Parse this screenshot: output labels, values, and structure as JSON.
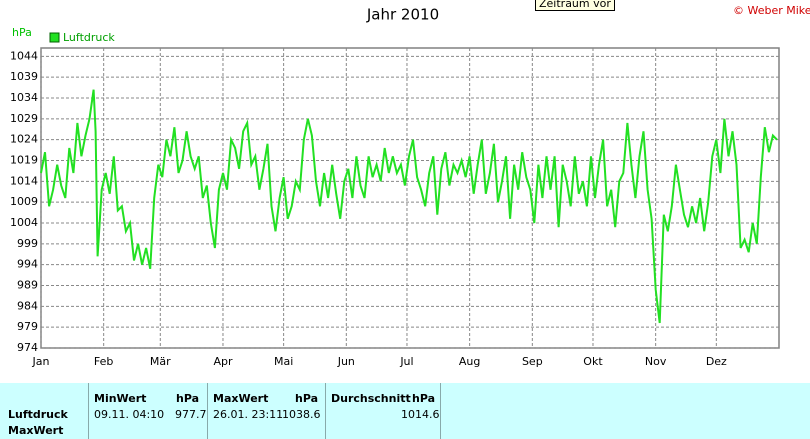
{
  "tooltip": "Zeitraum vor",
  "copyright": "© Weber Mike",
  "chart_data": {
    "type": "line",
    "title": "Jahr 2010",
    "y_label": "hPa",
    "grid": true,
    "legend": "top-left",
    "xlim": [
      0,
      365
    ],
    "xticks": [
      {
        "value": 0,
        "label": "Jan"
      },
      {
        "value": 31,
        "label": "Feb"
      },
      {
        "value": 59,
        "label": "Mär"
      },
      {
        "value": 90,
        "label": "Apr"
      },
      {
        "value": 120,
        "label": "Mai"
      },
      {
        "value": 151,
        "label": "Jun"
      },
      {
        "value": 181,
        "label": "Jul"
      },
      {
        "value": 212,
        "label": "Aug"
      },
      {
        "value": 243,
        "label": "Sep"
      },
      {
        "value": 273,
        "label": "Okt"
      },
      {
        "value": 304,
        "label": "Nov"
      },
      {
        "value": 334,
        "label": "Dez"
      }
    ],
    "ylim": [
      974,
      1046
    ],
    "yticks": [
      974,
      979,
      984,
      989,
      994,
      999,
      1004,
      1009,
      1014,
      1019,
      1024,
      1029,
      1034,
      1039,
      1044
    ],
    "x": [
      0,
      2,
      4,
      6,
      8,
      10,
      12,
      14,
      16,
      18,
      20,
      22,
      24,
      26,
      27,
      28,
      30,
      32,
      34,
      36,
      38,
      40,
      42,
      44,
      46,
      48,
      50,
      52,
      54,
      56,
      58,
      60,
      62,
      64,
      66,
      68,
      70,
      72,
      74,
      76,
      78,
      80,
      82,
      84,
      86,
      88,
      90,
      92,
      94,
      96,
      98,
      100,
      102,
      104,
      106,
      108,
      110,
      112,
      114,
      116,
      118,
      120,
      122,
      124,
      126,
      128,
      130,
      132,
      134,
      136,
      138,
      140,
      142,
      144,
      146,
      148,
      150,
      152,
      154,
      156,
      158,
      160,
      162,
      164,
      166,
      168,
      170,
      172,
      174,
      176,
      178,
      180,
      182,
      184,
      186,
      188,
      190,
      192,
      194,
      196,
      198,
      200,
      202,
      204,
      206,
      208,
      210,
      212,
      214,
      216,
      218,
      220,
      222,
      224,
      226,
      228,
      230,
      232,
      234,
      236,
      238,
      240,
      242,
      244,
      246,
      248,
      250,
      252,
      254,
      256,
      258,
      260,
      262,
      264,
      266,
      268,
      270,
      272,
      274,
      276,
      278,
      280,
      282,
      284,
      286,
      288,
      290,
      292,
      294,
      296,
      298,
      300,
      302,
      304,
      306,
      308,
      310,
      312,
      314,
      316,
      318,
      320,
      322,
      324,
      326,
      328,
      330,
      332,
      334,
      336,
      338,
      340,
      342,
      344,
      346,
      348,
      350,
      352,
      354,
      356,
      358,
      360,
      362,
      364
    ],
    "series": [
      {
        "name": "Luftdruck",
        "color": "#22e022",
        "values": [
          1016,
          1021,
          1008,
          1012,
          1018,
          1013,
          1010,
          1022,
          1016,
          1028,
          1020,
          1025,
          1029,
          1036,
          1026,
          996,
          1012,
          1016,
          1011,
          1020,
          1007,
          1008,
          1002,
          1004,
          995,
          999,
          994,
          998,
          993,
          1010,
          1018,
          1015,
          1024,
          1020,
          1027,
          1016,
          1019,
          1026,
          1020,
          1017,
          1020,
          1010,
          1013,
          1004,
          998,
          1012,
          1016,
          1012,
          1024,
          1022,
          1017,
          1026,
          1028,
          1018,
          1020,
          1012,
          1017,
          1023,
          1008,
          1002,
          1010,
          1015,
          1005,
          1008,
          1014,
          1012,
          1024,
          1029,
          1025,
          1014,
          1008,
          1016,
          1010,
          1018,
          1011,
          1005,
          1014,
          1017,
          1010,
          1020,
          1013,
          1010,
          1020,
          1015,
          1018,
          1014,
          1022,
          1016,
          1020,
          1016,
          1018,
          1013,
          1020,
          1024,
          1015,
          1012,
          1008,
          1016,
          1020,
          1006,
          1017,
          1021,
          1013,
          1018,
          1016,
          1019,
          1015,
          1020,
          1011,
          1018,
          1024,
          1011,
          1016,
          1023,
          1009,
          1014,
          1020,
          1005,
          1018,
          1012,
          1021,
          1015,
          1012,
          1004,
          1018,
          1010,
          1020,
          1012,
          1020,
          1003,
          1018,
          1014,
          1008,
          1020,
          1011,
          1014,
          1008,
          1020,
          1010,
          1018,
          1024,
          1008,
          1012,
          1003,
          1014,
          1016,
          1028,
          1018,
          1010,
          1020,
          1026,
          1012,
          1005,
          988,
          980,
          1006,
          1002,
          1008,
          1018,
          1012,
          1006,
          1003,
          1008,
          1004,
          1010,
          1002,
          1009,
          1020,
          1024,
          1016,
          1029,
          1020,
          1026,
          1018,
          998,
          1000,
          997,
          1004,
          999,
          1015,
          1027,
          1021,
          1025,
          1024
        ]
      }
    ]
  },
  "table": {
    "row_labels": [
      "Luftdruck",
      "MaxWert"
    ],
    "columns": [
      {
        "name": "MinWert",
        "unit": "hPa"
      },
      {
        "name": "MaxWert",
        "unit": "hPa"
      },
      {
        "name": "Durchschnitt",
        "unit": "hPa"
      }
    ],
    "rows": [
      [
        "09.11.  04:10",
        "977.7",
        "26.01.  23:11",
        "1038.6",
        "1014.6"
      ]
    ]
  }
}
